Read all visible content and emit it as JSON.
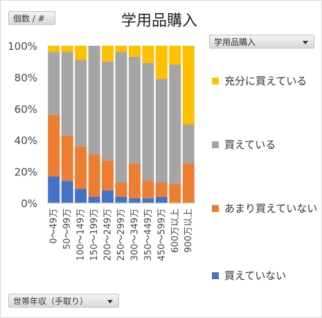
{
  "field_buttons": {
    "values_field": "個数 / #",
    "legend_field": "学用品購入",
    "axis_field": "世帯年収（手取り）"
  },
  "chart_data": {
    "type": "bar",
    "stacked": true,
    "percent": true,
    "title": "学用品購入",
    "xlabel": "",
    "ylabel": "",
    "ylim": [
      0,
      100
    ],
    "yticks": [
      "0%",
      "20%",
      "40%",
      "60%",
      "80%",
      "100%"
    ],
    "grid": false,
    "legend_position": "right",
    "categories": [
      "0～49万",
      "50～99万",
      "100～149万",
      "150～199万",
      "200～249万",
      "250～299万",
      "300～349万",
      "350～449万",
      "450～599万",
      "600万以上",
      "900万以上"
    ],
    "series": [
      {
        "name": "買えていない",
        "color": "#4472C4",
        "values": [
          17,
          14,
          9,
          4,
          8,
          4,
          3,
          3,
          4,
          0,
          0
        ]
      },
      {
        "name": "あまり買えていない",
        "color": "#ED7D31",
        "values": [
          39,
          29,
          27,
          27,
          19,
          9,
          22,
          11,
          9,
          12,
          25
        ]
      },
      {
        "name": "買えている",
        "color": "#A5A5A5",
        "values": [
          40,
          53,
          55,
          69,
          63,
          83,
          68,
          75,
          66,
          76,
          25
        ]
      },
      {
        "name": "充分に買えている",
        "color": "#FFC000",
        "values": [
          4,
          4,
          9,
          0,
          10,
          4,
          7,
          11,
          21,
          12,
          50
        ]
      }
    ]
  }
}
